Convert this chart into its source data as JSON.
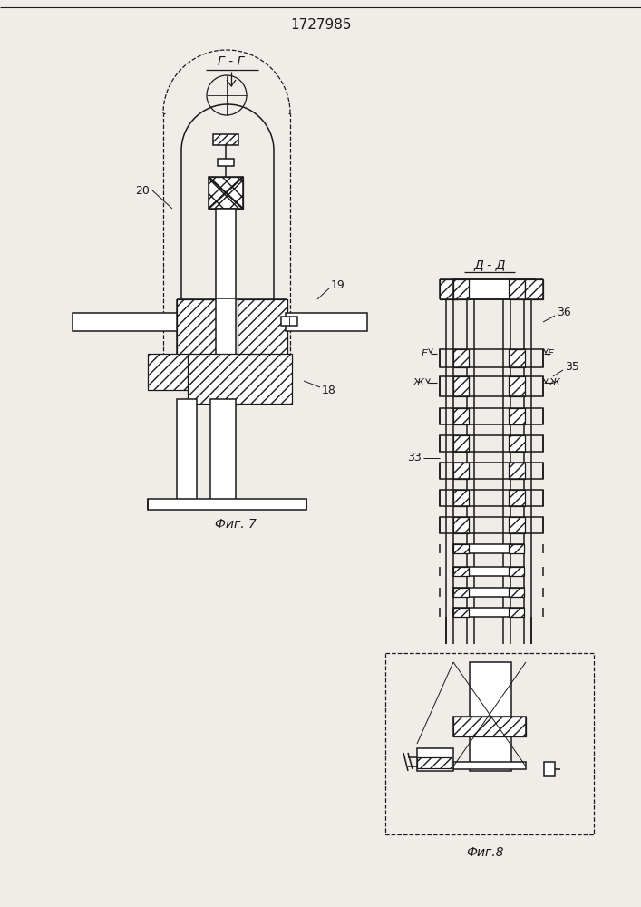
{
  "title": "1727985",
  "bg_color": "#f0ede8",
  "line_color": "#1a1a1a",
  "fig7_label": "Фиг. 7",
  "fig8_label": "Фиг.8",
  "gg_label": "Г - Г",
  "dd_label": "Д - Д",
  "label_20": "20",
  "label_18": "18",
  "label_19": "19",
  "label_36": "36",
  "label_35": "35",
  "label_33": "33",
  "label_E": "Е",
  "label_Zh": "Ж"
}
